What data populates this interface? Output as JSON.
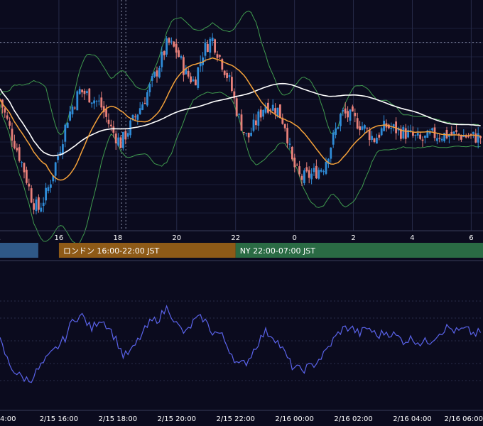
{
  "chart_data": [
    {
      "type": "candlestick",
      "panel": "price",
      "x_axis": {
        "tick_labels": [
          "16",
          "18",
          "20",
          "22",
          "0",
          "2",
          "4",
          "6"
        ],
        "tick_hours": [
          16,
          18,
          20,
          22,
          24,
          26,
          28,
          30
        ],
        "range_hours": [
          14.0,
          30.4
        ]
      },
      "vertical_marker_hour": 18.2,
      "horizontal_marker_level": 0.84,
      "overlays": [
        {
          "indicator": "bollinger-upper",
          "color": "#3f9a4e"
        },
        {
          "indicator": "bollinger-middle",
          "color": "#f4a13a"
        },
        {
          "indicator": "bollinger-lower",
          "color": "#3f9a4e"
        },
        {
          "indicator": "long-moving-average",
          "color": "#ffffff"
        }
      ],
      "candle_colors": {
        "up": "#2f8cd8",
        "down": "#e8807a"
      },
      "close_path": [
        [
          14.0,
          0.58
        ],
        [
          14.4,
          0.42
        ],
        [
          14.8,
          0.27
        ],
        [
          15.1,
          0.12
        ],
        [
          15.3,
          0.08
        ],
        [
          15.6,
          0.16
        ],
        [
          16.0,
          0.34
        ],
        [
          16.3,
          0.5
        ],
        [
          16.7,
          0.62
        ],
        [
          17.0,
          0.6
        ],
        [
          17.4,
          0.56
        ],
        [
          17.8,
          0.44
        ],
        [
          18.1,
          0.38
        ],
        [
          18.5,
          0.48
        ],
        [
          18.9,
          0.58
        ],
        [
          19.3,
          0.7
        ],
        [
          19.7,
          0.84
        ],
        [
          20.0,
          0.8
        ],
        [
          20.3,
          0.7
        ],
        [
          20.6,
          0.66
        ],
        [
          20.9,
          0.8
        ],
        [
          21.2,
          0.86
        ],
        [
          21.5,
          0.76
        ],
        [
          21.8,
          0.66
        ],
        [
          22.1,
          0.5
        ],
        [
          22.4,
          0.4
        ],
        [
          22.7,
          0.48
        ],
        [
          23.0,
          0.56
        ],
        [
          23.4,
          0.54
        ],
        [
          23.7,
          0.46
        ],
        [
          23.9,
          0.3
        ],
        [
          24.2,
          0.22
        ],
        [
          24.6,
          0.24
        ],
        [
          25.0,
          0.28
        ],
        [
          25.3,
          0.4
        ],
        [
          25.6,
          0.52
        ],
        [
          25.9,
          0.5
        ],
        [
          26.3,
          0.46
        ],
        [
          26.7,
          0.4
        ],
        [
          27.1,
          0.46
        ],
        [
          27.5,
          0.44
        ],
        [
          27.9,
          0.42
        ],
        [
          28.3,
          0.39
        ],
        [
          28.7,
          0.42
        ],
        [
          29.1,
          0.42
        ],
        [
          29.5,
          0.42
        ],
        [
          30.0,
          0.41
        ],
        [
          30.4,
          0.41
        ]
      ]
    },
    {
      "type": "bar",
      "panel": "market-sessions",
      "sessions": [
        {
          "label": "",
          "start_hour": 13.0,
          "end_hour": 15.3,
          "color": "#2f5887"
        },
        {
          "label": "ロンドン 16:00-22:00 JST",
          "start_hour": 16.0,
          "end_hour": 22.0,
          "color": "#8e5a17"
        },
        {
          "label": "NY 22:00-07:00 JST",
          "start_hour": 22.0,
          "end_hour": 31.0,
          "color": "#2a6b44"
        }
      ]
    },
    {
      "type": "line",
      "panel": "oscillator",
      "color": "#5a63ea",
      "x_axis": {
        "tick_labels": [
          "4:00",
          "2/15 16:00",
          "2/15 18:00",
          "2/15 20:00",
          "2/15 22:00",
          "2/16 00:00",
          "2/16 02:00",
          "2/16 04:00",
          "2/16 06:00"
        ],
        "tick_hours": [
          14,
          16,
          18,
          20,
          22,
          24,
          26,
          28,
          30
        ]
      },
      "levels": [
        0.85,
        0.7,
        0.5,
        0.3,
        0.15
      ],
      "path": [
        [
          14.0,
          0.5
        ],
        [
          14.3,
          0.3
        ],
        [
          14.6,
          0.2
        ],
        [
          15.0,
          0.15
        ],
        [
          15.4,
          0.28
        ],
        [
          15.8,
          0.4
        ],
        [
          16.2,
          0.52
        ],
        [
          16.5,
          0.7
        ],
        [
          16.8,
          0.72
        ],
        [
          17.1,
          0.6
        ],
        [
          17.4,
          0.7
        ],
        [
          17.7,
          0.62
        ],
        [
          18.0,
          0.48
        ],
        [
          18.2,
          0.36
        ],
        [
          18.5,
          0.42
        ],
        [
          18.8,
          0.55
        ],
        [
          19.1,
          0.66
        ],
        [
          19.4,
          0.7
        ],
        [
          19.7,
          0.8
        ],
        [
          20.0,
          0.64
        ],
        [
          20.3,
          0.56
        ],
        [
          20.6,
          0.68
        ],
        [
          20.9,
          0.7
        ],
        [
          21.2,
          0.58
        ],
        [
          21.5,
          0.56
        ],
        [
          21.8,
          0.42
        ],
        [
          22.1,
          0.28
        ],
        [
          22.4,
          0.32
        ],
        [
          22.7,
          0.46
        ],
        [
          23.0,
          0.58
        ],
        [
          23.3,
          0.54
        ],
        [
          23.6,
          0.42
        ],
        [
          23.9,
          0.28
        ],
        [
          24.2,
          0.24
        ],
        [
          24.6,
          0.28
        ],
        [
          25.0,
          0.38
        ],
        [
          25.3,
          0.5
        ],
        [
          25.6,
          0.6
        ],
        [
          25.9,
          0.62
        ],
        [
          26.2,
          0.56
        ],
        [
          26.5,
          0.62
        ],
        [
          26.8,
          0.54
        ],
        [
          27.1,
          0.58
        ],
        [
          27.4,
          0.55
        ],
        [
          27.7,
          0.5
        ],
        [
          28.0,
          0.52
        ],
        [
          28.3,
          0.48
        ],
        [
          28.6,
          0.5
        ],
        [
          28.9,
          0.57
        ],
        [
          29.2,
          0.62
        ],
        [
          29.5,
          0.58
        ],
        [
          29.8,
          0.6
        ],
        [
          30.1,
          0.56
        ],
        [
          30.4,
          0.58
        ]
      ]
    }
  ]
}
